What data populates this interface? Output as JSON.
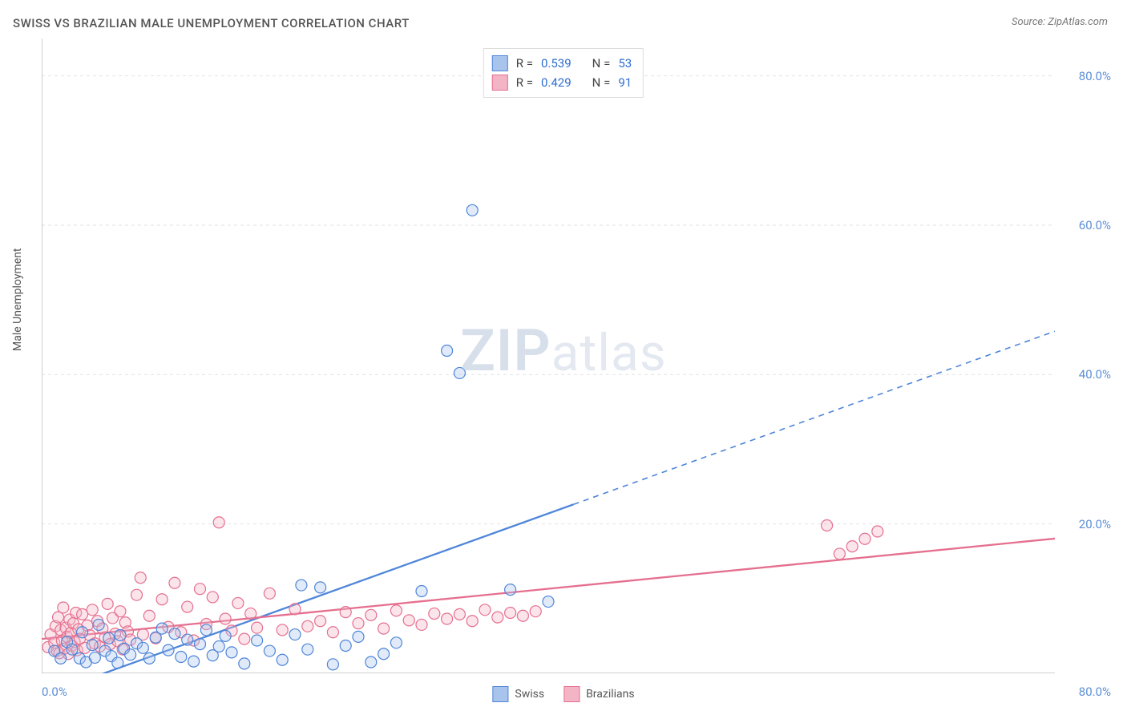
{
  "chart": {
    "type": "scatter",
    "title": "SWISS VS BRAZILIAN MALE UNEMPLOYMENT CORRELATION CHART",
    "source_label": "Source: ZipAtlas.com",
    "ylabel": "Male Unemployment",
    "watermark_bold": "ZIP",
    "watermark_rest": "atlas",
    "background_color": "#ffffff",
    "grid_color": "#e2e2e2",
    "axis_color": "#bfbfbf",
    "tick_label_color": "#5b8fd6",
    "xlim": [
      0,
      80
    ],
    "ylim": [
      0,
      85
    ],
    "x_tick_positions": [
      0,
      10,
      20,
      30,
      40,
      50,
      60,
      70,
      80
    ],
    "x_tick_labels_shown": {
      "0": "0.0%",
      "80": "80.0%"
    },
    "y_tick_positions": [
      0,
      20,
      40,
      60,
      80
    ],
    "y_tick_labels_shown": {
      "20": "20.0%",
      "40": "40.0%",
      "60": "60.0%",
      "80": "80.0%"
    },
    "marker_radius": 7,
    "marker_stroke_width": 1.2,
    "marker_fill_opacity": 0.35,
    "series": [
      {
        "id": "swiss",
        "label": "Swiss",
        "color_stroke": "#4f86d9",
        "color_fill": "#a8c4ec",
        "R": 0.539,
        "N": 53,
        "trend": {
          "slope": 0.61,
          "intercept": -3.0,
          "solid_xmax": 42,
          "dash_xmax": 80,
          "width": 2.3
        },
        "points": [
          [
            1,
            3.0
          ],
          [
            1.5,
            2.0
          ],
          [
            2,
            4.2
          ],
          [
            2.4,
            3.2
          ],
          [
            3,
            2.0
          ],
          [
            3.2,
            5.5
          ],
          [
            3.5,
            1.5
          ],
          [
            4,
            3.8
          ],
          [
            4.2,
            2.1
          ],
          [
            4.5,
            6.5
          ],
          [
            5,
            3.0
          ],
          [
            5.3,
            4.7
          ],
          [
            5.5,
            2.3
          ],
          [
            6,
            1.4
          ],
          [
            6.2,
            5.1
          ],
          [
            6.5,
            3.3
          ],
          [
            7,
            2.5
          ],
          [
            7.5,
            4.0
          ],
          [
            8,
            3.4
          ],
          [
            8.5,
            2.0
          ],
          [
            9,
            4.8
          ],
          [
            9.5,
            6.0
          ],
          [
            10,
            3.1
          ],
          [
            10.5,
            5.3
          ],
          [
            11,
            2.2
          ],
          [
            11.5,
            4.5
          ],
          [
            12,
            1.6
          ],
          [
            12.5,
            3.9
          ],
          [
            13,
            5.8
          ],
          [
            13.5,
            2.4
          ],
          [
            14,
            3.6
          ],
          [
            14.5,
            5.0
          ],
          [
            15,
            2.8
          ],
          [
            16,
            1.3
          ],
          [
            17,
            4.4
          ],
          [
            18,
            3.0
          ],
          [
            19,
            1.8
          ],
          [
            20,
            5.2
          ],
          [
            20.5,
            11.8
          ],
          [
            21,
            3.2
          ],
          [
            22,
            11.5
          ],
          [
            23,
            1.2
          ],
          [
            24,
            3.7
          ],
          [
            25,
            4.9
          ],
          [
            26,
            1.5
          ],
          [
            27,
            2.6
          ],
          [
            28,
            4.1
          ],
          [
            30,
            11.0
          ],
          [
            32,
            43.2
          ],
          [
            33,
            40.2
          ],
          [
            34,
            62.0
          ],
          [
            37,
            11.2
          ],
          [
            40,
            9.6
          ]
        ]
      },
      {
        "id": "brazilians",
        "label": "Brazilians",
        "color_stroke": "#e56f8f",
        "color_fill": "#f3b5c6",
        "R": 0.429,
        "N": 91,
        "trend": {
          "slope": 0.168,
          "intercept": 4.6,
          "solid_xmax": 80,
          "dash_xmax": 80,
          "width": 2.3
        },
        "points": [
          [
            0.5,
            3.5
          ],
          [
            0.7,
            5.2
          ],
          [
            1,
            4.1
          ],
          [
            1.1,
            6.3
          ],
          [
            1.2,
            3.0
          ],
          [
            1.3,
            7.5
          ],
          [
            1.4,
            2.7
          ],
          [
            1.5,
            5.8
          ],
          [
            1.6,
            4.4
          ],
          [
            1.7,
            8.8
          ],
          [
            1.8,
            3.3
          ],
          [
            1.9,
            6.1
          ],
          [
            2.0,
            4.9
          ],
          [
            2.1,
            2.6
          ],
          [
            2.2,
            7.2
          ],
          [
            2.3,
            5.4
          ],
          [
            2.4,
            3.7
          ],
          [
            2.5,
            6.7
          ],
          [
            2.6,
            4.2
          ],
          [
            2.7,
            8.1
          ],
          [
            2.8,
            3.1
          ],
          [
            2.9,
            5.9
          ],
          [
            3.0,
            4.6
          ],
          [
            3.2,
            7.9
          ],
          [
            3.4,
            3.4
          ],
          [
            3.6,
            6.4
          ],
          [
            3.8,
            5.1
          ],
          [
            4.0,
            8.5
          ],
          [
            4.2,
            4.0
          ],
          [
            4.4,
            7.0
          ],
          [
            4.6,
            3.6
          ],
          [
            4.8,
            6.0
          ],
          [
            5.0,
            4.8
          ],
          [
            5.2,
            9.3
          ],
          [
            5.4,
            3.9
          ],
          [
            5.6,
            7.4
          ],
          [
            5.8,
            5.3
          ],
          [
            6.0,
            4.3
          ],
          [
            6.2,
            8.3
          ],
          [
            6.4,
            3.2
          ],
          [
            6.6,
            6.8
          ],
          [
            6.8,
            5.6
          ],
          [
            7.0,
            4.5
          ],
          [
            7.5,
            10.5
          ],
          [
            7.8,
            12.8
          ],
          [
            8.0,
            5.2
          ],
          [
            8.5,
            7.7
          ],
          [
            9.0,
            4.7
          ],
          [
            9.5,
            9.9
          ],
          [
            10.0,
            6.2
          ],
          [
            10.5,
            12.1
          ],
          [
            11.0,
            5.5
          ],
          [
            11.5,
            8.9
          ],
          [
            12.0,
            4.4
          ],
          [
            12.5,
            11.3
          ],
          [
            13.0,
            6.6
          ],
          [
            13.5,
            10.2
          ],
          [
            14.0,
            20.2
          ],
          [
            14.5,
            7.3
          ],
          [
            15.0,
            5.7
          ],
          [
            15.5,
            9.4
          ],
          [
            16.0,
            4.6
          ],
          [
            16.5,
            8.0
          ],
          [
            17.0,
            6.1
          ],
          [
            18.0,
            10.7
          ],
          [
            19.0,
            5.8
          ],
          [
            20.0,
            8.6
          ],
          [
            21.0,
            6.3
          ],
          [
            22.0,
            7.0
          ],
          [
            23.0,
            5.5
          ],
          [
            24.0,
            8.2
          ],
          [
            25.0,
            6.7
          ],
          [
            26.0,
            7.8
          ],
          [
            27.0,
            6.0
          ],
          [
            28.0,
            8.4
          ],
          [
            29.0,
            7.1
          ],
          [
            30.0,
            6.5
          ],
          [
            31.0,
            8.0
          ],
          [
            32.0,
            7.3
          ],
          [
            33.0,
            7.9
          ],
          [
            34.0,
            7.0
          ],
          [
            35.0,
            8.5
          ],
          [
            36.0,
            7.5
          ],
          [
            37.0,
            8.1
          ],
          [
            38.0,
            7.7
          ],
          [
            39.0,
            8.3
          ],
          [
            62.0,
            19.8
          ],
          [
            63.0,
            16.0
          ],
          [
            64.0,
            17.0
          ],
          [
            65.0,
            18.0
          ],
          [
            66.0,
            19.0
          ]
        ]
      }
    ],
    "legend_top": {
      "rows": [
        {
          "swatch_fill": "#a8c4ec",
          "swatch_stroke": "#4f86d9",
          "r_label": "R =",
          "r_value": "0.539",
          "n_label": "N =",
          "n_value": "53"
        },
        {
          "swatch_fill": "#f3b5c6",
          "swatch_stroke": "#e56f8f",
          "r_label": "R =",
          "r_value": "0.429",
          "n_label": "N =",
          "n_value": "91"
        }
      ]
    },
    "legend_bottom": [
      {
        "swatch_fill": "#a8c4ec",
        "swatch_stroke": "#4f86d9",
        "label": "Swiss"
      },
      {
        "swatch_fill": "#f3b5c6",
        "swatch_stroke": "#e56f8f",
        "label": "Brazilians"
      }
    ]
  }
}
